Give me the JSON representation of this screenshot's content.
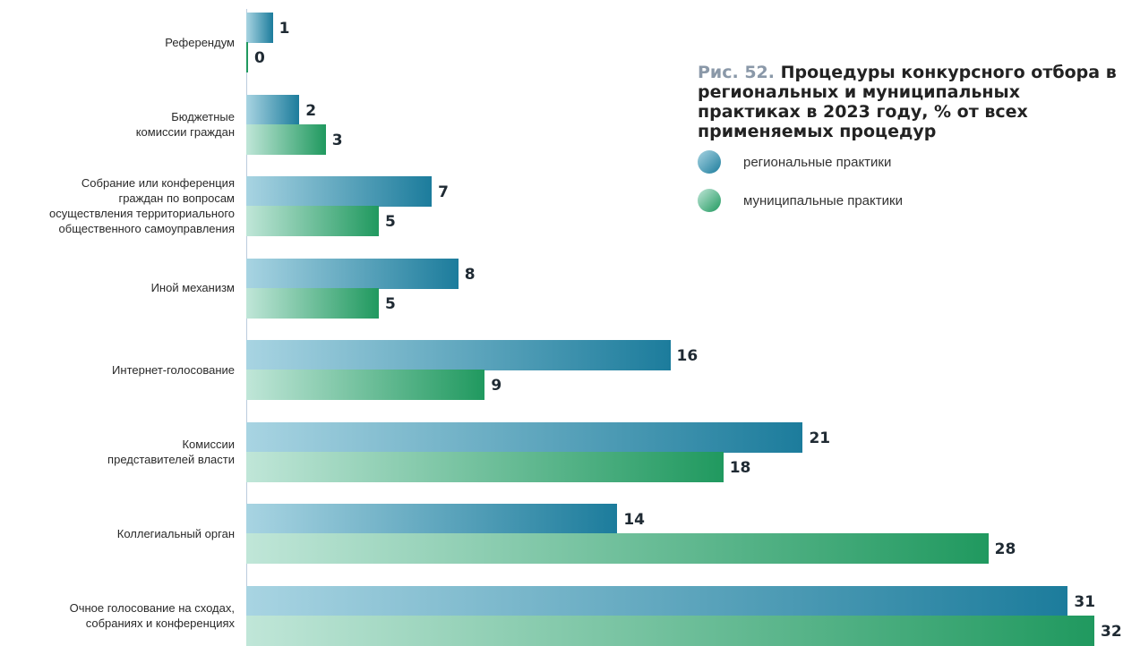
{
  "chart_data": {
    "type": "bar",
    "orientation": "horizontal",
    "title_prefix": "Рис. 52.",
    "title": "Процедуры конкурсного отбора в региональных и муниципальных практиках в 2023 году, % от всех применяемых процедур",
    "categories": [
      "Референдум",
      "Бюджетные\nкомиссии граждан",
      "Собрание или конференция\nграждан по вопросам\nосуществления территориального\nобщественного самоуправления",
      "Иной механизм",
      "Интернет-голосование",
      "Комиссии\nпредставителей власти",
      "Коллегиальный орган",
      "Очное голосование на сходах,\nсобраниях и конференциях"
    ],
    "series": [
      {
        "name": "региональные практики",
        "values": [
          1,
          2,
          7,
          8,
          16,
          21,
          14,
          31
        ],
        "color": "#1c7c9c"
      },
      {
        "name": "муниципальные практики",
        "values": [
          0,
          3,
          5,
          5,
          9,
          18,
          28,
          32
        ],
        "color": "#20995f"
      }
    ],
    "xlim": [
      0,
      32
    ],
    "legend_position": "top-right"
  }
}
